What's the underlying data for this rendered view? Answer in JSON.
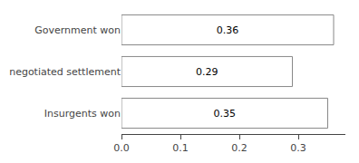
{
  "chart_data": {
    "type": "bar",
    "orientation": "horizontal",
    "categories": [
      "Insurgents won",
      "negotiated settlement",
      "Government won"
    ],
    "values": [
      0.35,
      0.29,
      0.36
    ],
    "color": "#ffffff",
    "data_labels": true,
    "xlim": [
      0,
      0.38
    ],
    "xticks": [
      {
        "value": 0,
        "label": "0.0"
      },
      0.1,
      0.2,
      0.3
    ],
    "grid": false
  }
}
